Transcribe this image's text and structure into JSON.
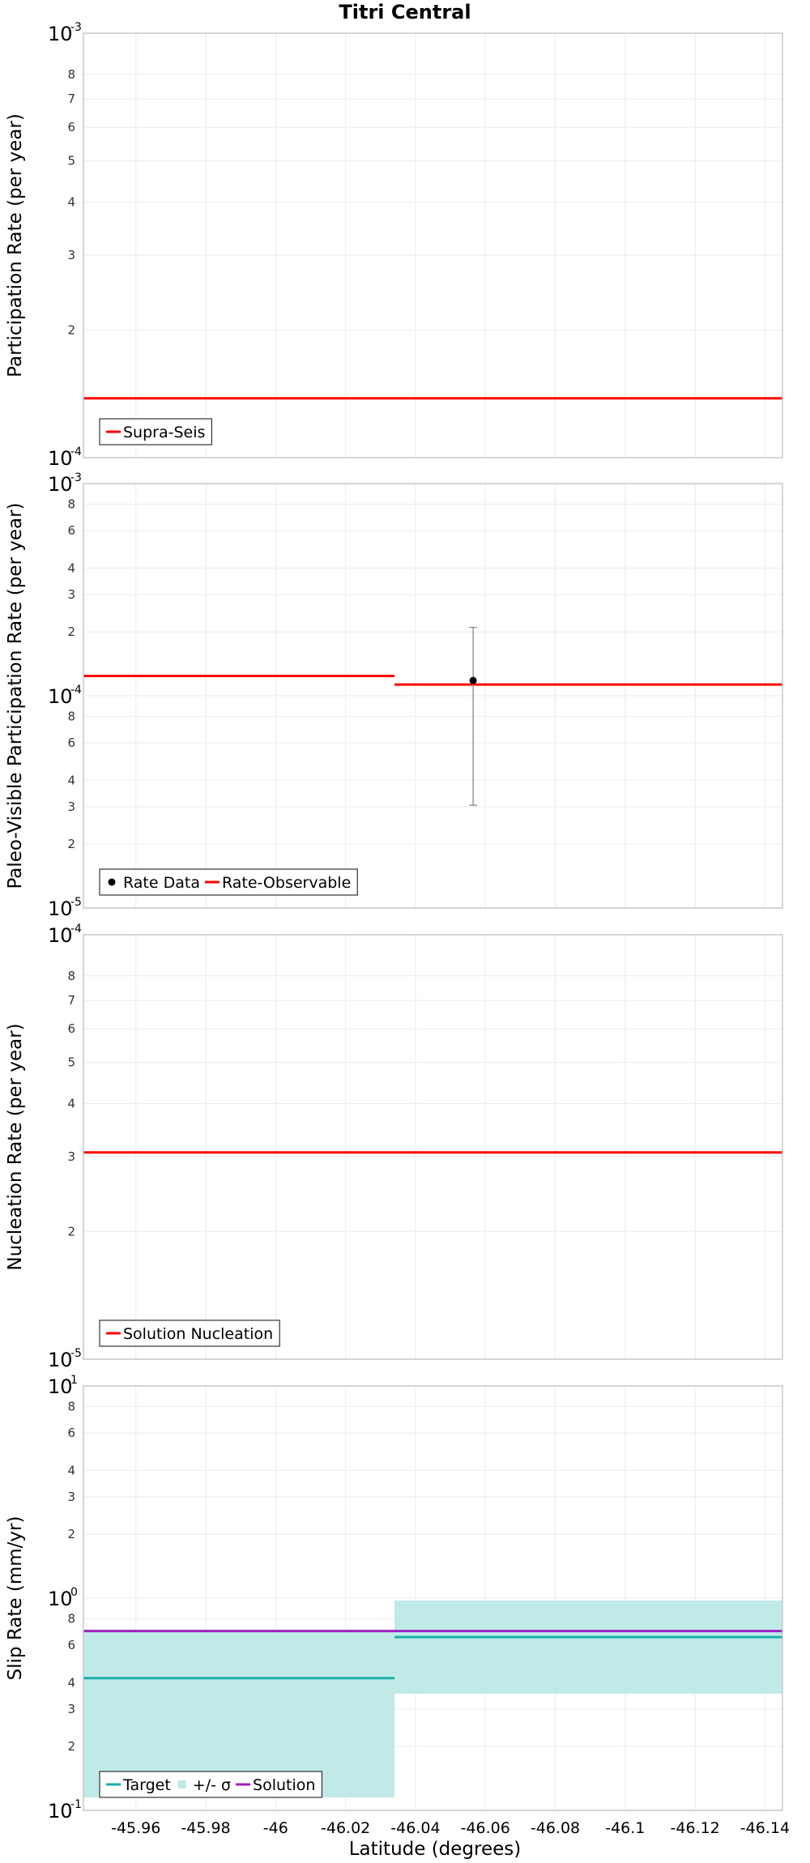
{
  "chart_data": {
    "title": "Titri Central",
    "xlabel": "Latitude (degrees)",
    "xlim": [
      -45.945,
      -46.145
    ],
    "x_ticks": [
      -45.96,
      -45.98,
      -46,
      -46.02,
      -46.04,
      -46.06,
      -46.08,
      -46.1,
      -46.12,
      -46.14
    ],
    "x_tick_labels": [
      "-45.96",
      "-45.98",
      "-46",
      "-46.02",
      "-46.04",
      "-46.06",
      "-46.08",
      "-46.1",
      "-46.12",
      "-46.14"
    ],
    "panels": [
      {
        "id": "participation",
        "type": "line",
        "yscale": "log",
        "ylabel": "Participation Rate (per year)",
        "ylim": [
          0.0001,
          0.001
        ],
        "major_ticks": [
          {
            "value": 0.001,
            "base": "10",
            "exp": "-3"
          },
          {
            "value": 0.0001,
            "base": "10",
            "exp": "-4"
          }
        ],
        "minor_ticks": [
          {
            "value": 0.0008,
            "label": "8"
          },
          {
            "value": 0.0007,
            "label": "7"
          },
          {
            "value": 0.0006,
            "label": "6"
          },
          {
            "value": 0.0005,
            "label": "5"
          },
          {
            "value": 0.0004,
            "label": "4"
          },
          {
            "value": 0.0003,
            "label": "3"
          },
          {
            "value": 0.0002,
            "label": "2"
          }
        ],
        "series": [
          {
            "name": "Supra-Seis",
            "color": "#ff0000",
            "kind": "step",
            "segments": [
              {
                "x0": -45.945,
                "x1": -46.145,
                "y": 0.000138
              }
            ]
          }
        ],
        "legend": [
          {
            "label": "Supra-Seis",
            "marker": "line",
            "color": "#ff0000"
          }
        ]
      },
      {
        "id": "paleo",
        "type": "line",
        "yscale": "log",
        "ylabel": "Paleo-Visible Participation Rate (per year)",
        "ylim": [
          1e-05,
          0.001
        ],
        "major_ticks": [
          {
            "value": 0.001,
            "base": "10",
            "exp": "-3"
          },
          {
            "value": 0.0001,
            "base": "10",
            "exp": "-4"
          },
          {
            "value": 1e-05,
            "base": "10",
            "exp": "-5"
          }
        ],
        "minor_ticks": [
          {
            "value": 0.0008,
            "label": "8"
          },
          {
            "value": 0.0006,
            "label": "6"
          },
          {
            "value": 0.0004,
            "label": "4"
          },
          {
            "value": 0.0003,
            "label": "3"
          },
          {
            "value": 0.0002,
            "label": "2"
          },
          {
            "value": 8e-05,
            "label": "8"
          },
          {
            "value": 6e-05,
            "label": "6"
          },
          {
            "value": 4e-05,
            "label": "4"
          },
          {
            "value": 3e-05,
            "label": "3"
          },
          {
            "value": 2e-05,
            "label": "2"
          }
        ],
        "series": [
          {
            "name": "Rate-Observable",
            "color": "#ff0000",
            "kind": "step",
            "segments": [
              {
                "x0": -45.945,
                "x1": -46.034,
                "y": 0.000124
              },
              {
                "x0": -46.034,
                "x1": -46.145,
                "y": 0.000113
              }
            ]
          }
        ],
        "points": [
          {
            "name": "Rate Data",
            "x": -46.0565,
            "y": 0.000118,
            "y_low": 3.05e-05,
            "y_high": 0.00021
          }
        ],
        "legend": [
          {
            "label": "Rate Data",
            "marker": "dot",
            "color": "#000000"
          },
          {
            "label": "Rate-Observable",
            "marker": "line",
            "color": "#ff0000"
          }
        ]
      },
      {
        "id": "nucleation",
        "type": "line",
        "yscale": "log",
        "ylabel": "Nucleation Rate (per year)",
        "ylim": [
          1e-05,
          0.0001
        ],
        "major_ticks": [
          {
            "value": 0.0001,
            "base": "10",
            "exp": "-4"
          },
          {
            "value": 1e-05,
            "base": "10",
            "exp": "-5"
          }
        ],
        "minor_ticks": [
          {
            "value": 8e-05,
            "label": "8"
          },
          {
            "value": 7e-05,
            "label": "7"
          },
          {
            "value": 6e-05,
            "label": "6"
          },
          {
            "value": 5e-05,
            "label": "5"
          },
          {
            "value": 4e-05,
            "label": "4"
          },
          {
            "value": 3e-05,
            "label": "3"
          },
          {
            "value": 2e-05,
            "label": "2"
          }
        ],
        "series": [
          {
            "name": "Solution Nucleation",
            "color": "#ff0000",
            "kind": "step",
            "segments": [
              {
                "x0": -45.945,
                "x1": -46.145,
                "y": 3.07e-05
              }
            ]
          }
        ],
        "legend": [
          {
            "label": "Solution Nucleation",
            "marker": "line",
            "color": "#ff0000"
          }
        ]
      },
      {
        "id": "slip",
        "type": "area",
        "yscale": "log",
        "ylabel": "Slip Rate (mm/yr)",
        "ylim": [
          0.1,
          10
        ],
        "major_ticks": [
          {
            "value": 10,
            "base": "10",
            "exp": "1"
          },
          {
            "value": 1,
            "base": "10",
            "exp": "0"
          },
          {
            "value": 0.1,
            "base": "10",
            "exp": "-1"
          }
        ],
        "minor_ticks": [
          {
            "value": 8,
            "label": "8"
          },
          {
            "value": 6,
            "label": "6"
          },
          {
            "value": 4,
            "label": "4"
          },
          {
            "value": 3,
            "label": "3"
          },
          {
            "value": 2,
            "label": "2"
          },
          {
            "value": 0.8,
            "label": "8"
          },
          {
            "value": 0.6,
            "label": "6"
          },
          {
            "value": 0.4,
            "label": "4"
          },
          {
            "value": 0.3,
            "label": "3"
          },
          {
            "value": 0.2,
            "label": "2"
          }
        ],
        "bands": [
          {
            "name": "+/- σ",
            "color": "#bfeae8",
            "segments": [
              {
                "x0": -45.945,
                "x1": -46.034,
                "y_low": 0.115,
                "y_high": 0.71
              },
              {
                "x0": -46.034,
                "x1": -46.145,
                "y_low": 0.355,
                "y_high": 0.975
              }
            ]
          }
        ],
        "series": [
          {
            "name": "Target",
            "color": "#1aada8",
            "kind": "step",
            "segments": [
              {
                "x0": -45.945,
                "x1": -46.034,
                "y": 0.42
              },
              {
                "x0": -46.034,
                "x1": -46.145,
                "y": 0.655
              }
            ]
          },
          {
            "name": "Solution",
            "color": "#a020c0",
            "kind": "step",
            "segments": [
              {
                "x0": -45.945,
                "x1": -46.145,
                "y": 0.7
              }
            ]
          }
        ],
        "legend": [
          {
            "label": "Target",
            "marker": "line",
            "color": "#1aada8"
          },
          {
            "label": "+/- σ",
            "marker": "square",
            "color": "#bfeae8"
          },
          {
            "label": "Solution",
            "marker": "line",
            "color": "#a020c0"
          }
        ]
      }
    ]
  }
}
